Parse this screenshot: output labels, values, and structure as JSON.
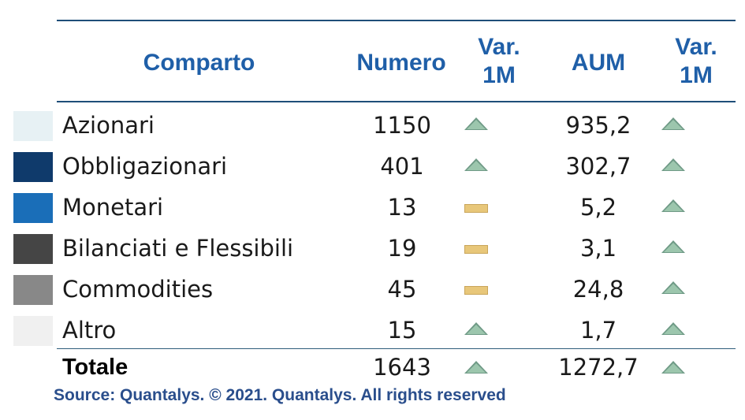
{
  "header": {
    "comparto": "Comparto",
    "numero": "Numero",
    "var_line1": "Var.",
    "var_line2": "1M",
    "aum": "AUM"
  },
  "rows": [
    {
      "label": "Azionari",
      "numero": "1150",
      "var_numero": "up",
      "aum": "935,2",
      "var_aum": "up",
      "swatch": "#e7f1f4"
    },
    {
      "label": "Obbligazionari",
      "numero": "401",
      "var_numero": "up",
      "aum": "302,7",
      "var_aum": "up",
      "swatch": "#0f3a6b"
    },
    {
      "label": "Monetari",
      "numero": "13",
      "var_numero": "flat",
      "aum": "5,2",
      "var_aum": "up",
      "swatch": "#1a6eb8"
    },
    {
      "label": "Bilanciati e Flessibili",
      "numero": "19",
      "var_numero": "flat",
      "aum": "3,1",
      "var_aum": "up",
      "swatch": "#454545"
    },
    {
      "label": "Commodities",
      "numero": "45",
      "var_numero": "flat",
      "aum": "24,8",
      "var_aum": "up",
      "swatch": "#888888"
    },
    {
      "label": "Altro",
      "numero": "15",
      "var_numero": "up",
      "aum": "1,7",
      "var_aum": "up",
      "swatch": "#f0f0f0"
    }
  ],
  "total": {
    "label": "Totale",
    "numero": "1643",
    "var_numero": "up",
    "aum": "1272,7",
    "var_aum": "up"
  },
  "source": "Source: Quantalys. © 2021. Quantalys. All rights reserved",
  "colors": {
    "header_text": "#1f5fa8",
    "indicator_up": "#8fbca2",
    "indicator_flat": "#e8c77a",
    "source_text": "#2a4e8c"
  }
}
